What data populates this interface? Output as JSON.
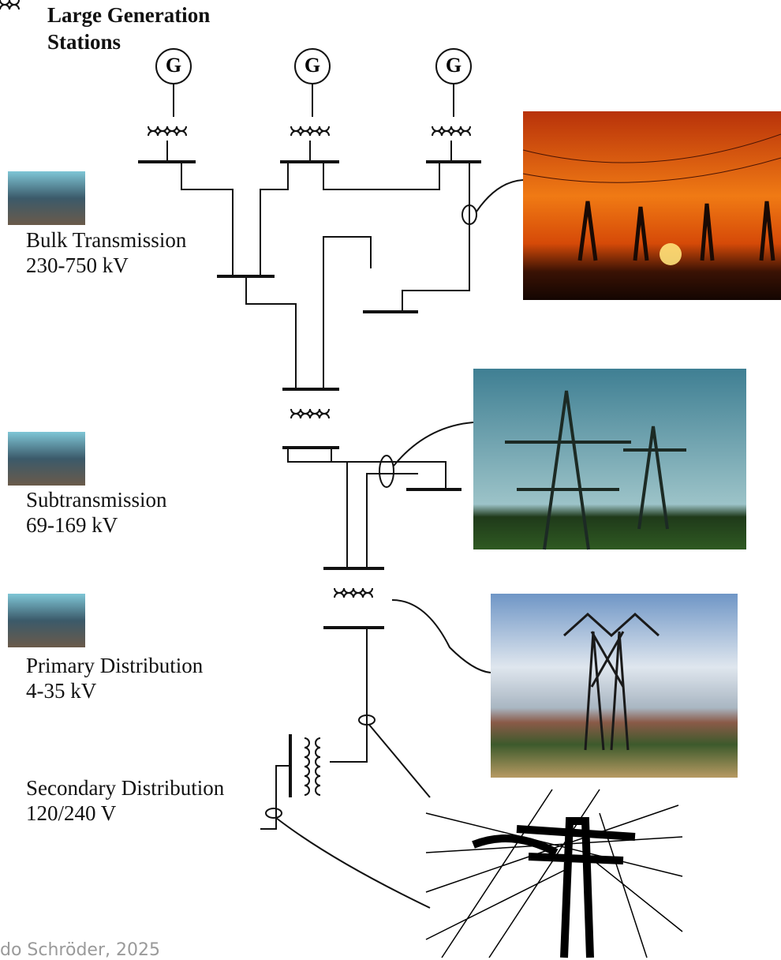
{
  "header": {
    "title_lines": [
      "Large Generation",
      "Stations"
    ]
  },
  "generators": [
    {
      "label": "G"
    },
    {
      "label": "G"
    },
    {
      "label": "G"
    }
  ],
  "levels": [
    {
      "name": "Bulk Transmission",
      "voltage": "230-750 kV"
    },
    {
      "name": "Subtransmission",
      "voltage": "69-169 kV"
    },
    {
      "name": "Primary Distribution",
      "voltage": "4-35 kV"
    },
    {
      "name": "Secondary Distribution",
      "voltage": "120/240 V"
    }
  ],
  "footer": {
    "credit": "do Schröder, 2025"
  }
}
